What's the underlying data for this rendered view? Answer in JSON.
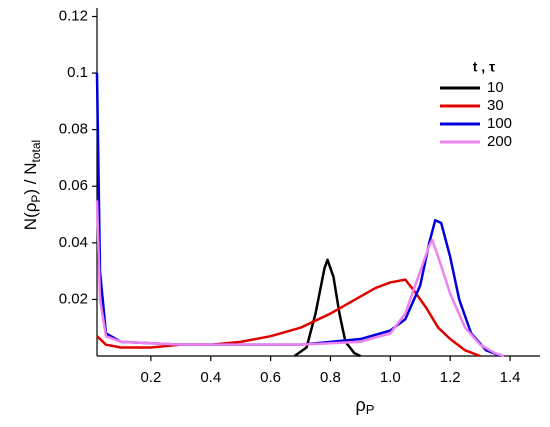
{
  "chart_data": {
    "type": "line",
    "x_label": [
      "ρ",
      "P"
    ],
    "y_label": [
      "N(ρ",
      "P",
      ") / N",
      "total"
    ],
    "legend_title": "t , τ",
    "legend": "top-right",
    "xlim": [
      0.02,
      1.5
    ],
    "ylim": [
      0,
      0.123
    ],
    "xticks": [
      0.2,
      0.4,
      0.6,
      0.8,
      {
        "value": 1.0,
        "label": "1.0"
      },
      1.2,
      1.4
    ],
    "yticks": [
      0.02,
      0.04,
      0.06,
      0.08,
      0.1,
      0.12
    ],
    "series": [
      {
        "name": "10",
        "color": "#000000",
        "x": [
          0.68,
          0.72,
          0.75,
          0.78,
          0.79,
          0.81,
          0.83,
          0.85,
          0.88,
          0.9
        ],
        "values": [
          0,
          0.003,
          0.015,
          0.031,
          0.034,
          0.028,
          0.015,
          0.005,
          0.001,
          0
        ]
      },
      {
        "name": "30",
        "color": "#e00000",
        "x": [
          0.02,
          0.05,
          0.1,
          0.2,
          0.3,
          0.4,
          0.5,
          0.6,
          0.7,
          0.8,
          0.9,
          0.95,
          1.0,
          1.05,
          1.08,
          1.12,
          1.16,
          1.2,
          1.25,
          1.3
        ],
        "values": [
          0.007,
          0.004,
          0.003,
          0.003,
          0.004,
          0.004,
          0.005,
          0.007,
          0.01,
          0.015,
          0.021,
          0.024,
          0.026,
          0.027,
          0.023,
          0.017,
          0.01,
          0.006,
          0.002,
          0
        ]
      },
      {
        "name": "100",
        "color": "#0000dd",
        "x": [
          0.02,
          0.03,
          0.05,
          0.1,
          0.3,
          0.5,
          0.7,
          0.9,
          1.0,
          1.05,
          1.1,
          1.13,
          1.15,
          1.17,
          1.2,
          1.23,
          1.27,
          1.32,
          1.37
        ],
        "values": [
          0.1,
          0.03,
          0.008,
          0.005,
          0.004,
          0.004,
          0.004,
          0.006,
          0.009,
          0.013,
          0.025,
          0.04,
          0.048,
          0.047,
          0.035,
          0.02,
          0.008,
          0.002,
          0
        ]
      },
      {
        "name": "200",
        "color": "#ee82ee",
        "x": [
          0.02,
          0.03,
          0.05,
          0.1,
          0.3,
          0.5,
          0.7,
          0.9,
          1.0,
          1.05,
          1.1,
          1.13,
          1.14,
          1.16,
          1.2,
          1.25,
          1.3,
          1.35,
          1.38
        ],
        "values": [
          0.055,
          0.02,
          0.007,
          0.005,
          0.004,
          0.004,
          0.004,
          0.005,
          0.008,
          0.015,
          0.03,
          0.039,
          0.041,
          0.035,
          0.022,
          0.01,
          0.004,
          0.001,
          0
        ]
      }
    ]
  }
}
